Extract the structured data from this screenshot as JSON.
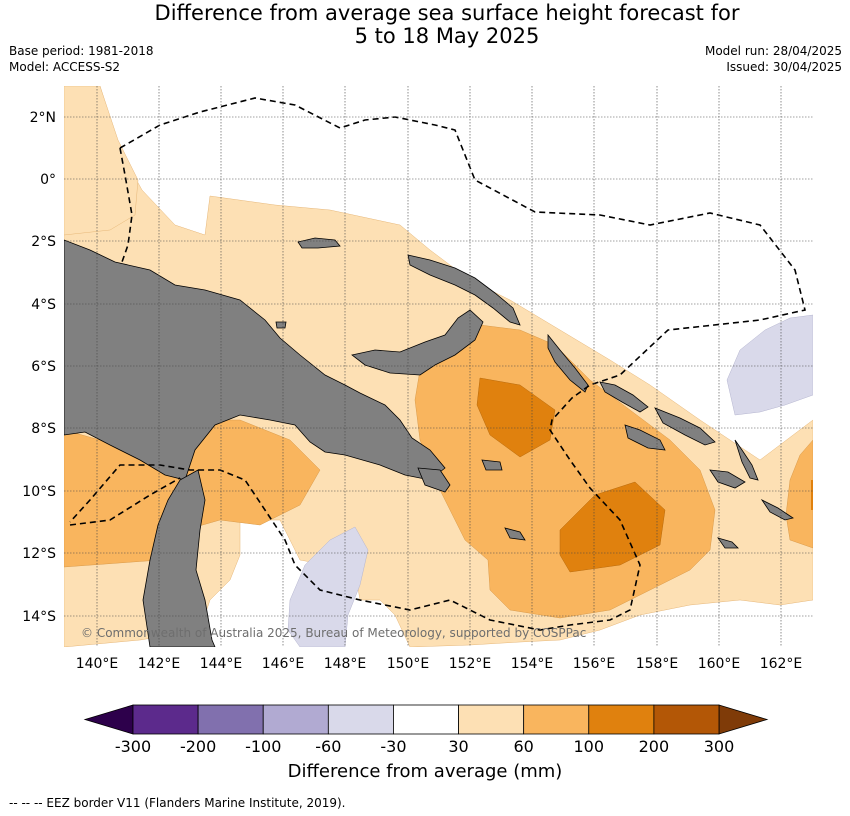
{
  "header": {
    "title_line1": "Difference from average sea surface height forecast for",
    "title_line2": "5 to 18 May 2025",
    "base_period": "Base period: 1981-2018",
    "model": "Model: ACCESS-S2",
    "model_run": "Model run: 28/04/2025",
    "issued": "Issued: 30/04/2025"
  },
  "map": {
    "lon_ticks": [
      "140°E",
      "142°E",
      "144°E",
      "146°E",
      "148°E",
      "150°E",
      "152°E",
      "154°E",
      "156°E",
      "158°E",
      "160°E",
      "162°E"
    ],
    "lat_ticks": [
      "2°N",
      "0°",
      "2°S",
      "4°S",
      "6°S",
      "8°S",
      "10°S",
      "12°S",
      "14°S"
    ],
    "copyright": "© Commonwealth of Australia 2025, Bureau of Meteorology, supported by COSPPac",
    "land_color": "#808080",
    "ocean_color": "#ffffff"
  },
  "colorbar": {
    "tick_labels": [
      "-300",
      "-200",
      "-100",
      "-60",
      "-30",
      "30",
      "60",
      "100",
      "200",
      "300"
    ],
    "colors": [
      "#5c2a8c",
      "#8170ae",
      "#b1aad2",
      "#d9d9ea",
      "#ffffff",
      "#fde0b4",
      "#f9b55e",
      "#e0810e",
      "#b35706"
    ],
    "under_color": "#2d004b",
    "over_color": "#7f3b08",
    "label": "Difference from average (mm)"
  },
  "footer": {
    "legend_text": "--  --  -- EEZ border V11 (Flanders Marine Institute, 2019)."
  }
}
